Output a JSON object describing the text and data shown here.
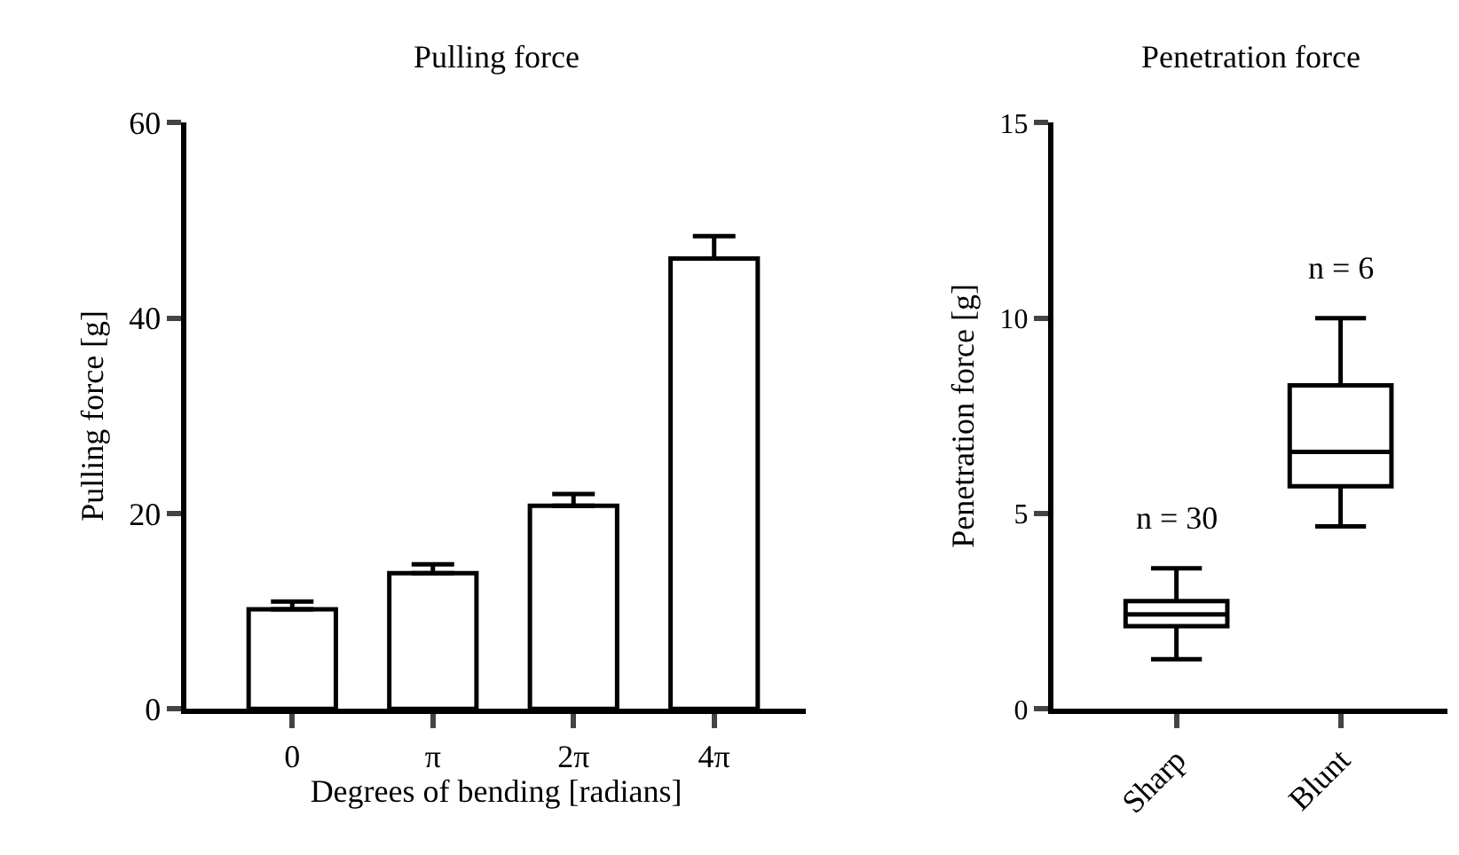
{
  "chart_data": [
    {
      "type": "bar",
      "title": "Pulling force",
      "xlabel": "Degrees of bending [radians]",
      "ylabel": "Pulling force [g]",
      "categories": [
        "0",
        "π",
        "2π",
        "4π"
      ],
      "series": [
        {
          "color": "#ffffff",
          "values": [
            10.2,
            13.9,
            20.8,
            46.1
          ],
          "errors": [
            [
              10.2,
              11.0
            ],
            [
              13.9,
              14.8
            ],
            [
              20.8,
              22.0
            ],
            [
              46.1,
              48.4
            ]
          ]
        }
      ],
      "ylim": [
        0,
        60
      ],
      "yticks": [
        0,
        20,
        40,
        60
      ]
    },
    {
      "type": "box",
      "title": "Penetration force",
      "ylabel": "Penetration force [g]",
      "categories": [
        "Sharp",
        "Blunt"
      ],
      "boxes": [
        {
          "low": 1.27,
          "q1": 2.12,
          "median": 2.42,
          "q3": 2.76,
          "high": 3.6
        },
        {
          "low": 4.67,
          "q1": 5.7,
          "median": 6.58,
          "q3": 8.28,
          "high": 10.0
        }
      ],
      "annotations": [
        "n = 30",
        "n = 6"
      ],
      "ylim": [
        0,
        15
      ],
      "yticks": [
        0,
        5,
        10,
        15
      ]
    }
  ]
}
